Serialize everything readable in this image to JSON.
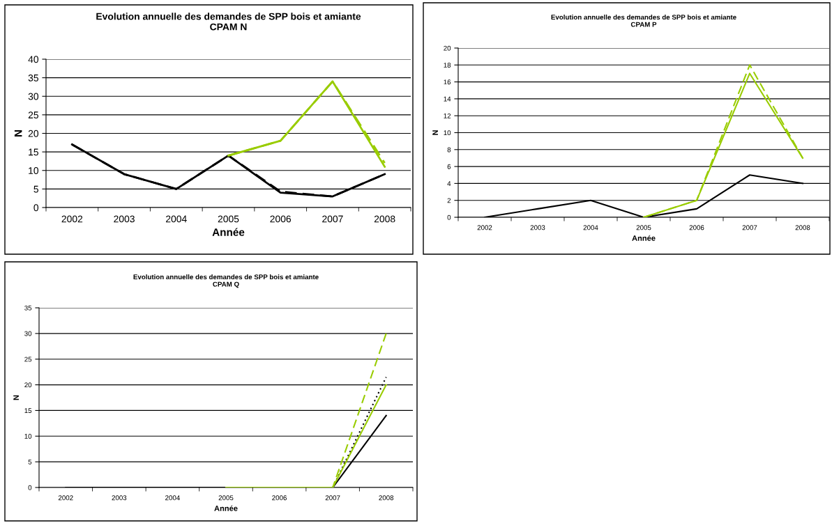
{
  "chart_data": [
    {
      "type": "line",
      "title": "Evolution annuelle des demandes de SPP bois et amiante\nCPAM N",
      "xlabel": "Année",
      "ylabel": "N",
      "categories": [
        "2002",
        "2003",
        "2004",
        "2005",
        "2006",
        "2007",
        "2008"
      ],
      "ylim": [
        0,
        40
      ],
      "yticks": [
        0,
        5,
        10,
        15,
        20,
        25,
        30,
        35,
        40
      ],
      "grid": "y",
      "legend": false,
      "marker": "none",
      "series": [
        {
          "color": "#000000",
          "line_style": "solid",
          "values": [
            17,
            9,
            5,
            14,
            4,
            3,
            9
          ]
        },
        {
          "color": "#000000",
          "line_style": "dashed",
          "values": [
            17,
            9,
            5,
            14,
            4.3,
            3,
            9
          ]
        },
        {
          "color": "#99cc00",
          "line_style": "solid",
          "values": [
            null,
            null,
            null,
            14,
            18,
            34,
            11
          ]
        },
        {
          "color": "#99cc00",
          "line_style": "dashed",
          "values": [
            null,
            null,
            null,
            14,
            18,
            34,
            12
          ]
        }
      ]
    },
    {
      "type": "line",
      "title": "Evolution annuelle des demandes de SPP bois et amiante\nCPAM P",
      "xlabel": "Année",
      "ylabel": "N",
      "categories": [
        "2002",
        "2003",
        "2004",
        "2005",
        "2006",
        "2007",
        "2008"
      ],
      "ylim": [
        0,
        20
      ],
      "yticks": [
        0,
        2,
        4,
        6,
        8,
        10,
        12,
        14,
        16,
        18,
        20
      ],
      "grid": "y",
      "legend": false,
      "marker": "none",
      "series": [
        {
          "color": "#000000",
          "line_style": "solid",
          "values": [
            0,
            1,
            2,
            0,
            1,
            5,
            4
          ]
        },
        {
          "color": "#99cc00",
          "line_style": "solid",
          "values": [
            null,
            null,
            null,
            0,
            2,
            17,
            7
          ]
        },
        {
          "color": "#99cc00",
          "line_style": "dashed",
          "values": [
            null,
            null,
            null,
            0,
            2,
            18,
            7
          ]
        }
      ]
    },
    {
      "type": "line",
      "title": "Evolution annuelle des demandes de SPP bois et amiante\nCPAM Q",
      "xlabel": "Année",
      "ylabel": "N",
      "categories": [
        "2002",
        "2003",
        "2004",
        "2005",
        "2006",
        "2007",
        "2008"
      ],
      "ylim": [
        0,
        35
      ],
      "yticks": [
        0,
        5,
        10,
        15,
        20,
        25,
        30,
        35
      ],
      "grid": "y",
      "legend": false,
      "marker": "none",
      "series": [
        {
          "color": "#000000",
          "line_style": "solid",
          "values": [
            0,
            0,
            0,
            0,
            0,
            0,
            14
          ]
        },
        {
          "color": "#000000",
          "line_style": "dotted",
          "values": [
            null,
            null,
            null,
            null,
            null,
            0,
            21.5
          ]
        },
        {
          "color": "#99cc00",
          "line_style": "solid",
          "values": [
            null,
            null,
            null,
            0,
            0,
            0,
            20
          ]
        },
        {
          "color": "#99cc00",
          "line_style": "dashed",
          "values": [
            null,
            null,
            null,
            0,
            0,
            0,
            30
          ]
        }
      ]
    }
  ]
}
